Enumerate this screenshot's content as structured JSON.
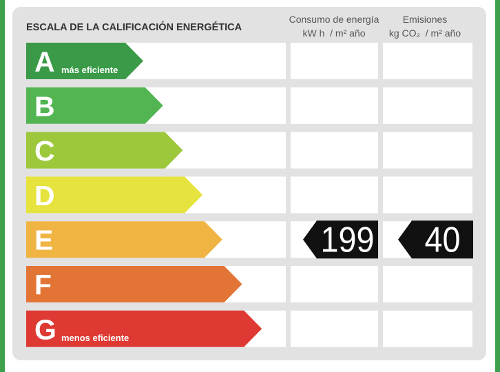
{
  "title": "ESCALA DE LA CALIFICACIÓN ENERGÉTICA",
  "columns": [
    {
      "heading": "Consumo de energía",
      "unit": "kW h  / m² año",
      "value": 199
    },
    {
      "heading": "Emisiones",
      "unit": "kg CO₂  / m² año",
      "value": 40
    }
  ],
  "rated_class": "E",
  "classes": [
    {
      "letter": "A",
      "note": "más eficiente",
      "color": "#3a9a48"
    },
    {
      "letter": "B",
      "color": "#52b551"
    },
    {
      "letter": "C",
      "color": "#9dc83b"
    },
    {
      "letter": "D",
      "color": "#e6e23e"
    },
    {
      "letter": "E",
      "color": "#efb442"
    },
    {
      "letter": "F",
      "color": "#e27536"
    },
    {
      "letter": "G",
      "note": "menos eficiente",
      "color": "#de3a33"
    }
  ]
}
